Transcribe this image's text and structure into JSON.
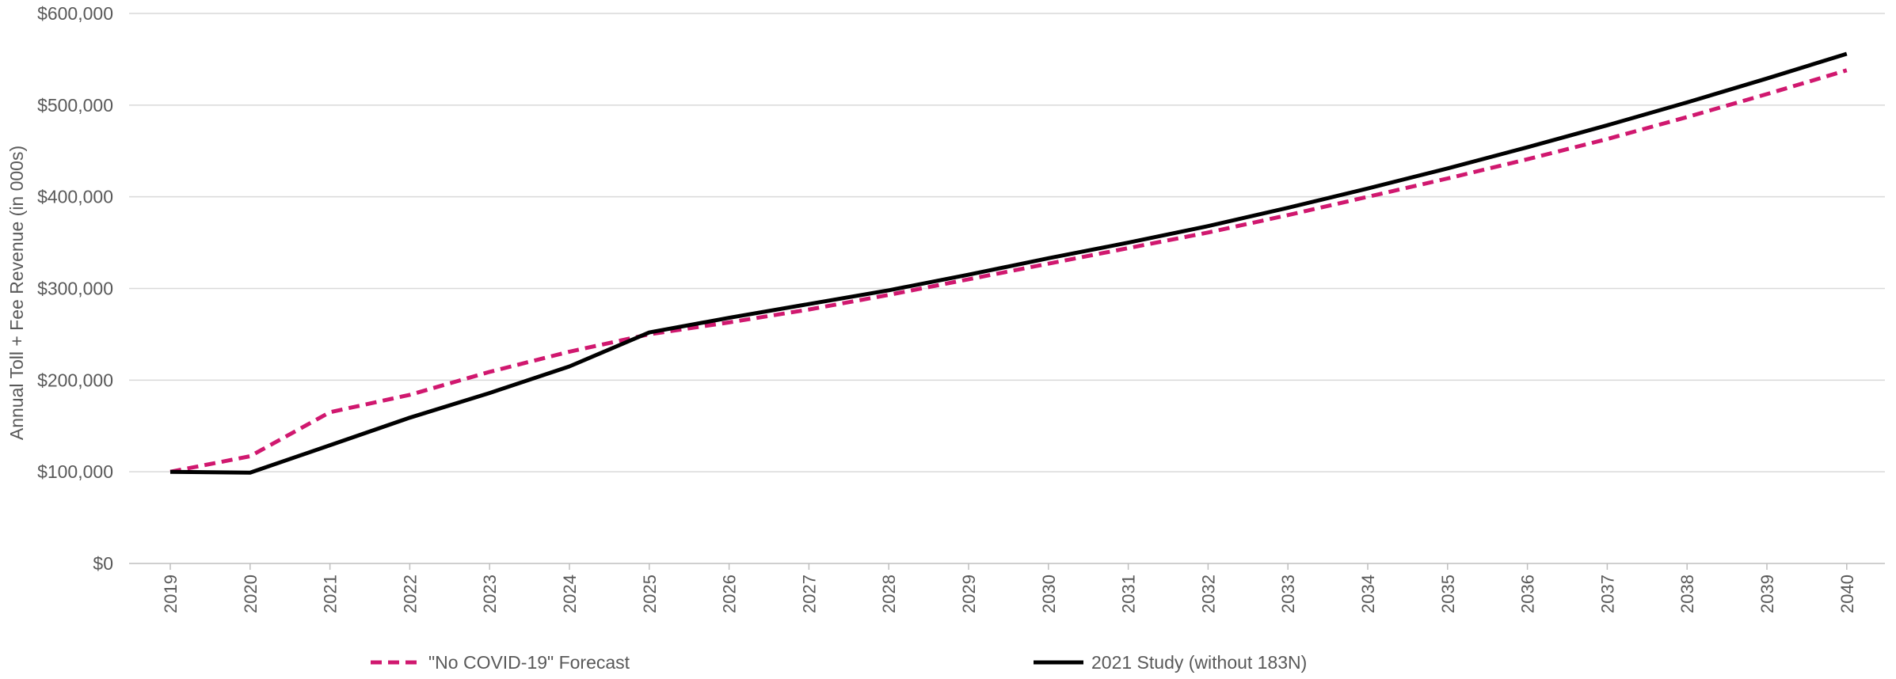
{
  "chart_data": {
    "type": "line",
    "title": "",
    "xlabel": "",
    "ylabel": "Annual Toll + Fee Revenue (in 000s)",
    "ylim": [
      0,
      600000
    ],
    "yticks": [
      0,
      100000,
      200000,
      300000,
      400000,
      500000,
      600000
    ],
    "ytick_labels": [
      "$0",
      "$100,000",
      "$200,000",
      "$300,000",
      "$400,000",
      "$500,000",
      "$600,000"
    ],
    "grid": "horizontal",
    "legend_position": "bottom",
    "categories": [
      "2019",
      "2020",
      "2021",
      "2022",
      "2023",
      "2024",
      "2025",
      "2026",
      "2027",
      "2028",
      "2029",
      "2030",
      "2031",
      "2032",
      "2033",
      "2034",
      "2035",
      "2036",
      "2037",
      "2038",
      "2039",
      "2040"
    ],
    "series": [
      {
        "name": "\"No COVID-19\" Forecast",
        "color": "#d0186f",
        "style": "dashed",
        "values": [
          100000,
          117000,
          165000,
          184000,
          209000,
          231000,
          250000,
          263000,
          277000,
          293000,
          310000,
          327000,
          344000,
          361000,
          380000,
          400000,
          420000,
          441000,
          463000,
          487000,
          512000,
          538000
        ]
      },
      {
        "name": "2021 Study (without 183N)",
        "color": "#000000",
        "style": "solid",
        "values": [
          100000,
          99000,
          129000,
          159000,
          186000,
          215000,
          252000,
          268000,
          283000,
          298000,
          315000,
          333000,
          350000,
          368000,
          388000,
          409000,
          431000,
          454000,
          478000,
          503000,
          529000,
          556000
        ]
      }
    ]
  }
}
